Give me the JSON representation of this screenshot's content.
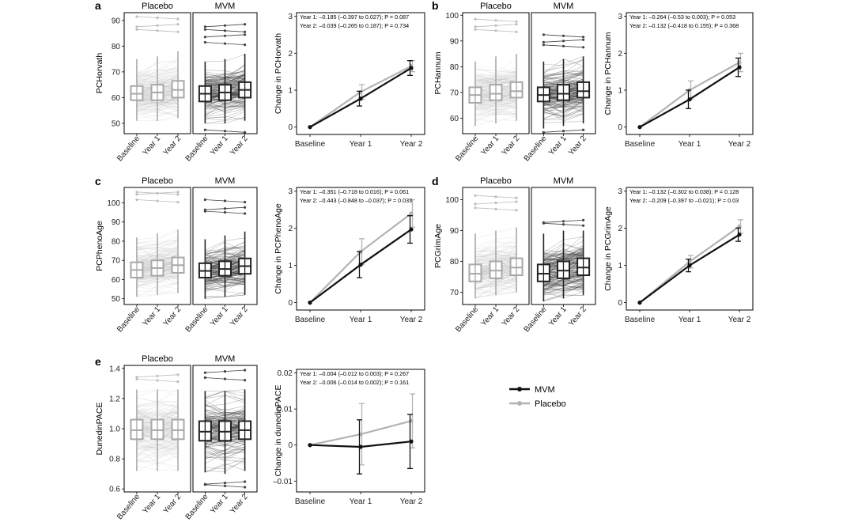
{
  "legend": {
    "mvm": "MVM",
    "placebo": "Placebo"
  },
  "colors": {
    "mvm": "#111111",
    "placebo": "#b3b3b3",
    "mvm_lines": "#3a3a3a",
    "placebo_lines": "#c8c8c8"
  },
  "chart_data": [
    {
      "panel": "a",
      "type": "box-spaghetti",
      "ylabel": "PCHorvath",
      "groups": [
        "Placebo",
        "MVM"
      ],
      "xticks": [
        "Baseline",
        "Year 1",
        "Year 2"
      ],
      "ylim": [
        46,
        93
      ],
      "yticks": [
        50,
        60,
        70,
        80,
        90
      ],
      "placebo_box": {
        "q1": [
          59,
          59,
          60
        ],
        "median": [
          61.5,
          62,
          63
        ],
        "q3": [
          64.5,
          65,
          66.5
        ],
        "whisk": [
          [
            51,
            75
          ],
          [
            51,
            76
          ],
          [
            52,
            78
          ]
        ]
      },
      "mvm_box": {
        "q1": [
          58.5,
          59,
          60
        ],
        "median": [
          61.5,
          62,
          63
        ],
        "q3": [
          64.5,
          65,
          66
        ],
        "whisk": [
          [
            50,
            74
          ],
          [
            50,
            75
          ],
          [
            51,
            77
          ]
        ]
      },
      "outliers": {
        "placebo": [
          86,
          88,
          91
        ],
        "mvm": [
          81,
          84,
          86,
          88,
          47
        ]
      }
    },
    {
      "panel": "a",
      "type": "line",
      "ylabel": "Change in PCHorvath",
      "x": [
        "Baseline",
        "Year 1",
        "Year 2"
      ],
      "ylim": [
        -0.2,
        3.1
      ],
      "yticks": [
        0,
        1,
        2,
        3
      ],
      "series": [
        {
          "name": "MVM",
          "values": [
            0,
            0.77,
            1.6
          ],
          "err": [
            0,
            0.2,
            0.2
          ]
        },
        {
          "name": "Placebo",
          "values": [
            0,
            0.95,
            1.65
          ],
          "err": [
            0,
            0.2,
            0.15
          ]
        }
      ],
      "annotations": [
        "Year 1: –0.185 (–0.397 to 0.027); P = 0.087",
        "Year 2: –0.039 (–0.265 to 0.187); P = 0.734"
      ]
    },
    {
      "panel": "b",
      "type": "box-spaghetti",
      "ylabel": "PCHannum",
      "groups": [
        "Placebo",
        "MVM"
      ],
      "xticks": [
        "Baseline",
        "Year 1",
        "Year 2"
      ],
      "ylim": [
        54,
        101
      ],
      "yticks": [
        60,
        70,
        80,
        90,
        100
      ],
      "placebo_box": {
        "q1": [
          66,
          67,
          68
        ],
        "median": [
          69,
          69.5,
          70.5
        ],
        "q3": [
          72,
          73,
          74
        ],
        "whisk": [
          [
            57,
            82
          ],
          [
            58,
            84
          ],
          [
            59,
            85
          ]
        ]
      },
      "mvm_box": {
        "q1": [
          66.5,
          67,
          68
        ],
        "median": [
          69,
          69.5,
          70.5
        ],
        "q3": [
          72,
          73,
          74
        ],
        "whisk": [
          [
            56,
            82
          ],
          [
            57,
            83
          ],
          [
            58,
            84
          ]
        ]
      },
      "outliers": {
        "placebo": [
          94,
          96,
          98
        ],
        "mvm": [
          88,
          90,
          92,
          55
        ]
      }
    },
    {
      "panel": "b",
      "type": "line",
      "ylabel": "Change in PCHannum",
      "x": [
        "Baseline",
        "Year 1",
        "Year 2"
      ],
      "ylim": [
        -0.2,
        3.1
      ],
      "yticks": [
        0,
        1,
        2,
        3
      ],
      "series": [
        {
          "name": "MVM",
          "values": [
            0,
            0.75,
            1.62
          ],
          "err": [
            0,
            0.25,
            0.25
          ]
        },
        {
          "name": "Placebo",
          "values": [
            0,
            1.0,
            1.75
          ],
          "err": [
            0,
            0.25,
            0.25
          ]
        }
      ],
      "annotations": [
        "Year 1: –0.264 (–0.53 to 0.003); P = 0.053",
        "Year 2: –0.132 (–0.418 to 0.155); P = 0.368"
      ]
    },
    {
      "panel": "c",
      "type": "box-spaghetti",
      "ylabel": "PCPhenoAge",
      "groups": [
        "Placebo",
        "MVM"
      ],
      "xticks": [
        "Baseline",
        "Year 1",
        "Year 2"
      ],
      "ylim": [
        47,
        108
      ],
      "yticks": [
        50,
        60,
        70,
        80,
        90,
        100
      ],
      "placebo_box": {
        "q1": [
          61,
          62,
          63.5
        ],
        "median": [
          65,
          66,
          67.5
        ],
        "q3": [
          69,
          70,
          71.5
        ],
        "whisk": [
          [
            51,
            82
          ],
          [
            52,
            84
          ],
          [
            53,
            86
          ]
        ]
      },
      "mvm_box": {
        "q1": [
          61,
          62,
          63
        ],
        "median": [
          64.5,
          65.5,
          67
        ],
        "q3": [
          68.5,
          69.5,
          71
        ],
        "whisk": [
          [
            50,
            81
          ],
          [
            51,
            83
          ],
          [
            52,
            85
          ]
        ]
      },
      "outliers": {
        "placebo": [
          101,
          105,
          105
        ],
        "mvm": [
          95,
          97,
          101
        ]
      }
    },
    {
      "panel": "c",
      "type": "line",
      "ylabel": "Change in PCPhenoAge",
      "x": [
        "Baseline",
        "Year 1",
        "Year 2"
      ],
      "ylim": [
        -0.2,
        3.1
      ],
      "yticks": [
        0,
        1,
        2,
        3
      ],
      "series": [
        {
          "name": "MVM",
          "values": [
            0,
            1.02,
            1.97
          ],
          "err": [
            0,
            0.35,
            0.37
          ]
        },
        {
          "name": "Placebo",
          "values": [
            0,
            1.37,
            2.4
          ],
          "err": [
            0,
            0.35,
            0.37
          ]
        }
      ],
      "annotations": [
        "Year 1: –0.351 (–0.718 to 0.016); P = 0.061",
        "Year 2: –0.443 (–0.848 to –0.037); P = 0.033"
      ]
    },
    {
      "panel": "d",
      "type": "box-spaghetti",
      "ylabel": "PCGrimAge",
      "groups": [
        "Placebo",
        "MVM"
      ],
      "xticks": [
        "Baseline",
        "Year 1",
        "Year 2"
      ],
      "ylim": [
        66,
        104
      ],
      "yticks": [
        70,
        80,
        90,
        100
      ],
      "placebo_box": {
        "q1": [
          73.5,
          74.5,
          75.5
        ],
        "median": [
          76,
          77,
          78
        ],
        "q3": [
          79,
          80,
          81
        ],
        "whisk": [
          [
            68,
            89
          ],
          [
            69,
            90
          ],
          [
            70,
            91
          ]
        ]
      },
      "mvm_box": {
        "q1": [
          73.5,
          74.5,
          75.5
        ],
        "median": [
          76,
          77,
          78
        ],
        "q3": [
          79,
          80,
          81
        ],
        "whisk": [
          [
            67,
            89
          ],
          [
            68,
            90
          ],
          [
            69,
            90
          ]
        ]
      },
      "outliers": {
        "placebo": [
          97,
          99,
          101
        ],
        "mvm": [
          92,
          93
        ]
      }
    },
    {
      "panel": "d",
      "type": "line",
      "ylabel": "Change in PCGrimAge",
      "x": [
        "Baseline",
        "Year 1",
        "Year 2"
      ],
      "ylim": [
        -0.2,
        3.1
      ],
      "yticks": [
        0,
        1,
        2,
        3
      ],
      "series": [
        {
          "name": "MVM",
          "values": [
            0,
            1.0,
            1.83
          ],
          "err": [
            0,
            0.17,
            0.18
          ]
        },
        {
          "name": "Placebo",
          "values": [
            0,
            1.1,
            2.05
          ],
          "err": [
            0,
            0.17,
            0.18
          ]
        }
      ],
      "annotations": [
        "Year 1: –0.132 (–0.302 to 0.038); P = 0.128",
        "Year 2: –0.209 (–0.397 to –0.021); P = 0.03"
      ]
    },
    {
      "panel": "e",
      "type": "box-spaghetti",
      "ylabel": "DunedinPACE",
      "groups": [
        "Placebo",
        "MVM"
      ],
      "xticks": [
        "Baseline",
        "Year 1",
        "Year 2"
      ],
      "ylim": [
        0.58,
        1.42
      ],
      "yticks": [
        0.6,
        0.8,
        1.0,
        1.2,
        1.4
      ],
      "placebo_box": {
        "q1": [
          0.93,
          0.93,
          0.93
        ],
        "median": [
          0.99,
          0.99,
          0.99
        ],
        "q3": [
          1.06,
          1.06,
          1.06
        ],
        "whisk": [
          [
            0.72,
            1.26
          ],
          [
            0.72,
            1.26
          ],
          [
            0.72,
            1.26
          ]
        ]
      },
      "mvm_box": {
        "q1": [
          0.92,
          0.92,
          0.93
        ],
        "median": [
          0.98,
          0.98,
          0.99
        ],
        "q3": [
          1.05,
          1.05,
          1.05
        ],
        "whisk": [
          [
            0.71,
            1.25
          ],
          [
            0.7,
            1.25
          ],
          [
            0.72,
            1.26
          ]
        ]
      },
      "outliers": {
        "placebo": [
          1.32,
          1.35
        ],
        "mvm": [
          1.33,
          1.38,
          0.62,
          0.64
        ]
      }
    },
    {
      "panel": "e",
      "type": "line",
      "ylabel": "Change in dunedinPACE",
      "x": [
        "Baseline",
        "Year 1",
        "Year 2"
      ],
      "ylim": [
        -0.013,
        0.021
      ],
      "yticks": [
        -0.01,
        0,
        0.01,
        0.02
      ],
      "series": [
        {
          "name": "MVM",
          "values": [
            0,
            -0.0005,
            0.001
          ],
          "err": [
            0,
            0.0075,
            0.0075
          ]
        },
        {
          "name": "Placebo",
          "values": [
            0,
            0.003,
            0.0067
          ],
          "err": [
            0,
            0.0085,
            0.0075
          ]
        }
      ],
      "annotations": [
        "Year 1: –0.004 (–0.012 to 0.003); P = 0.267",
        "Year 2: –0.006 (–0.014 to 0.002); P = 0.161"
      ]
    }
  ]
}
